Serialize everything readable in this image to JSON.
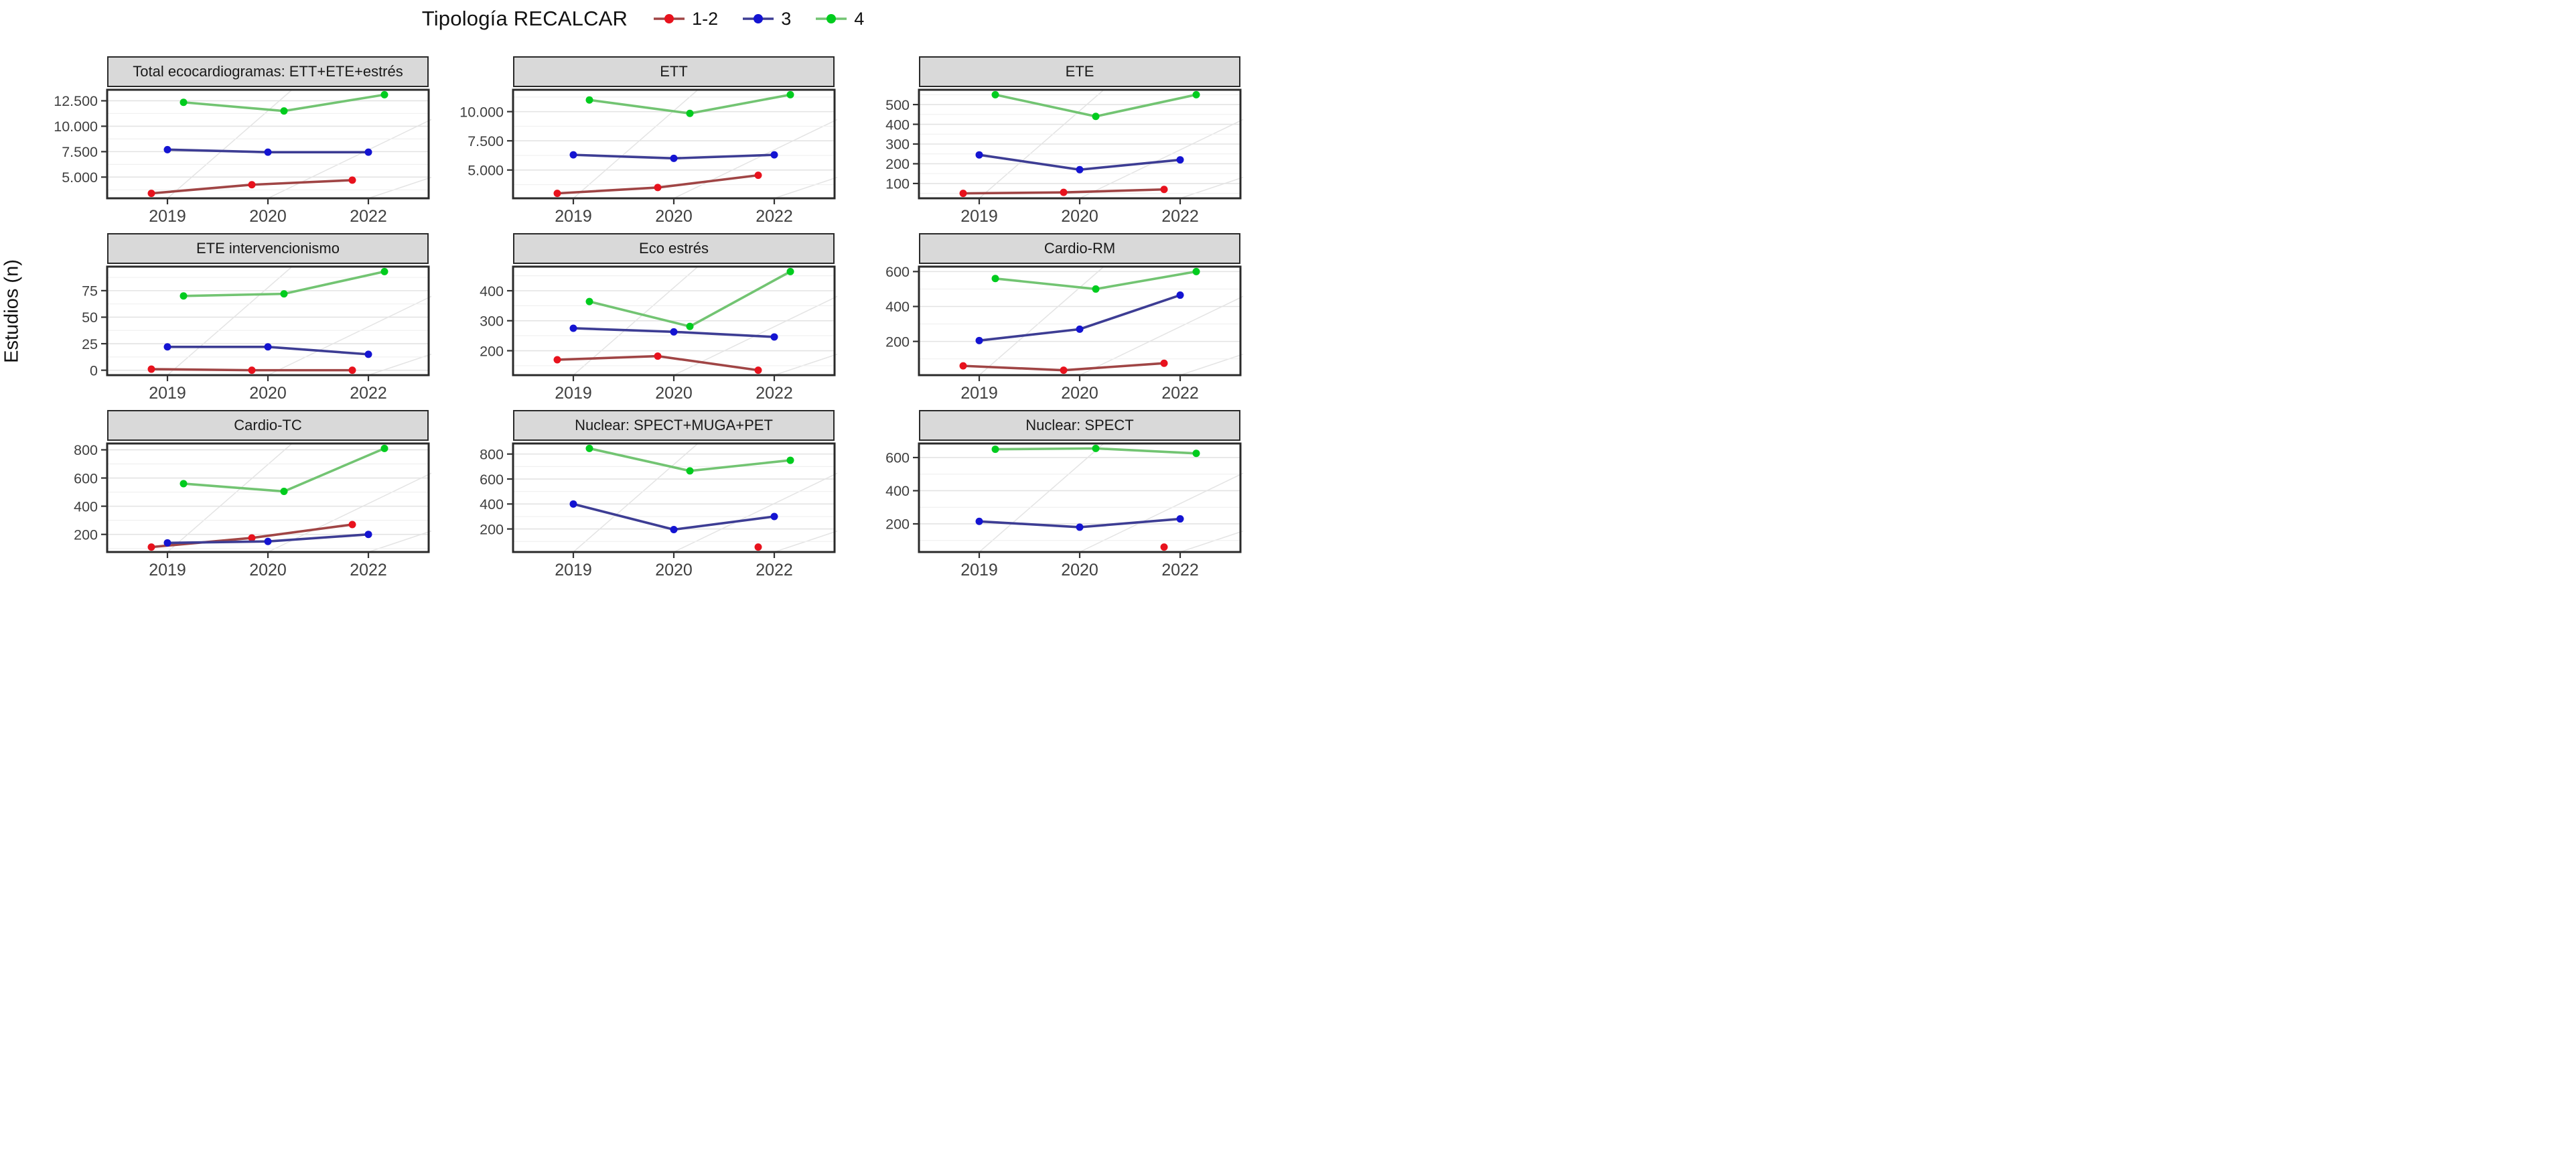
{
  "header": {
    "title": "Tipología RECALCAR",
    "legend": [
      {
        "label": "1-2",
        "point_color": "#e8121d",
        "line_color": "#a04545"
      },
      {
        "label": "3",
        "point_color": "#1414d2",
        "line_color": "#3d3d94"
      },
      {
        "label": "4",
        "point_color": "#00cc1e",
        "line_color": "#72c472"
      }
    ]
  },
  "y_axis_title": "Estudios (n)",
  "x_categories": [
    "2019",
    "2020",
    "2022"
  ],
  "chart_data": [
    {
      "type": "line",
      "title": "Total ecocardiogramas: ETT+ETE+estrés",
      "categories": [
        "2019",
        "2020",
        "2022"
      ],
      "yticks": [
        {
          "value": 5000,
          "label": "5.000"
        },
        {
          "value": 7500,
          "label": "7.500"
        },
        {
          "value": 10000,
          "label": "10.000"
        },
        {
          "value": 12500,
          "label": "12.500"
        }
      ],
      "series": [
        {
          "name": "1-2",
          "values": [
            3400,
            4250,
            4700
          ]
        },
        {
          "name": "3",
          "values": [
            7700,
            7450,
            7450
          ]
        },
        {
          "name": "4",
          "values": [
            12350,
            11500,
            13100
          ]
        }
      ]
    },
    {
      "type": "line",
      "title": "ETT",
      "categories": [
        "2019",
        "2020",
        "2022"
      ],
      "yticks": [
        {
          "value": 5000,
          "label": "5.000"
        },
        {
          "value": 7500,
          "label": "7.500"
        },
        {
          "value": 10000,
          "label": "10.000"
        }
      ],
      "series": [
        {
          "name": "1-2",
          "values": [
            3000,
            3500,
            4550
          ]
        },
        {
          "name": "3",
          "values": [
            6300,
            6000,
            6300
          ]
        },
        {
          "name": "4",
          "values": [
            11000,
            9850,
            11450
          ]
        }
      ]
    },
    {
      "type": "line",
      "title": "ETE",
      "categories": [
        "2019",
        "2020",
        "2022"
      ],
      "yticks": [
        {
          "value": 100,
          "label": "100"
        },
        {
          "value": 200,
          "label": "200"
        },
        {
          "value": 300,
          "label": "300"
        },
        {
          "value": 400,
          "label": "400"
        },
        {
          "value": 500,
          "label": "500"
        }
      ],
      "series": [
        {
          "name": "1-2",
          "values": [
            50,
            55,
            70
          ]
        },
        {
          "name": "3",
          "values": [
            245,
            170,
            220
          ]
        },
        {
          "name": "4",
          "values": [
            550,
            440,
            550
          ]
        }
      ]
    },
    {
      "type": "line",
      "title": "ETE intervencionismo",
      "categories": [
        "2019",
        "2020",
        "2022"
      ],
      "yticks": [
        {
          "value": 0,
          "label": "0"
        },
        {
          "value": 25,
          "label": "25"
        },
        {
          "value": 50,
          "label": "50"
        },
        {
          "value": 75,
          "label": "75"
        }
      ],
      "series": [
        {
          "name": "1-2",
          "values": [
            1,
            0,
            0
          ]
        },
        {
          "name": "3",
          "values": [
            22,
            22,
            15
          ]
        },
        {
          "name": "4",
          "values": [
            70,
            72,
            93
          ]
        }
      ]
    },
    {
      "type": "line",
      "title": "Eco estrés",
      "categories": [
        "2019",
        "2020",
        "2022"
      ],
      "yticks": [
        {
          "value": 200,
          "label": "200"
        },
        {
          "value": 300,
          "label": "300"
        },
        {
          "value": 400,
          "label": "400"
        }
      ],
      "series": [
        {
          "name": "1-2",
          "values": [
            170,
            182,
            135
          ]
        },
        {
          "name": "3",
          "values": [
            275,
            263,
            246
          ]
        },
        {
          "name": "4",
          "values": [
            364,
            281,
            464
          ]
        }
      ]
    },
    {
      "type": "line",
      "title": "Cardio-RM",
      "categories": [
        "2019",
        "2020",
        "2022"
      ],
      "yticks": [
        {
          "value": 200,
          "label": "200"
        },
        {
          "value": 400,
          "label": "400"
        },
        {
          "value": 600,
          "label": "600"
        }
      ],
      "series": [
        {
          "name": "1-2",
          "values": [
            60,
            35,
            75
          ]
        },
        {
          "name": "3",
          "values": [
            205,
            270,
            465
          ]
        },
        {
          "name": "4",
          "values": [
            560,
            500,
            600
          ]
        }
      ]
    },
    {
      "type": "line",
      "title": "Cardio-TC",
      "categories": [
        "2019",
        "2020",
        "2022"
      ],
      "yticks": [
        {
          "value": 200,
          "label": "200"
        },
        {
          "value": 400,
          "label": "400"
        },
        {
          "value": 600,
          "label": "600"
        },
        {
          "value": 800,
          "label": "800"
        }
      ],
      "series": [
        {
          "name": "1-2",
          "values": [
            110,
            175,
            270
          ]
        },
        {
          "name": "3",
          "values": [
            140,
            150,
            200
          ]
        },
        {
          "name": "4",
          "values": [
            560,
            505,
            810
          ]
        }
      ]
    },
    {
      "type": "line",
      "title": "Nuclear: SPECT+MUGA+PET",
      "categories": [
        "2019",
        "2020",
        "2022"
      ],
      "yticks": [
        {
          "value": 200,
          "label": "200"
        },
        {
          "value": 400,
          "label": "400"
        },
        {
          "value": 600,
          "label": "600"
        },
        {
          "value": 800,
          "label": "800"
        }
      ],
      "series": [
        {
          "name": "1-2",
          "values": [
            null,
            null,
            55
          ]
        },
        {
          "name": "3",
          "values": [
            400,
            195,
            300
          ]
        },
        {
          "name": "4",
          "values": [
            845,
            665,
            750
          ]
        }
      ]
    },
    {
      "type": "line",
      "title": "Nuclear: SPECT",
      "categories": [
        "2019",
        "2020",
        "2022"
      ],
      "yticks": [
        {
          "value": 200,
          "label": "200"
        },
        {
          "value": 400,
          "label": "400"
        },
        {
          "value": 600,
          "label": "600"
        }
      ],
      "series": [
        {
          "name": "1-2",
          "values": [
            null,
            null,
            60
          ]
        },
        {
          "name": "3",
          "values": [
            215,
            180,
            230
          ]
        },
        {
          "name": "4",
          "values": [
            650,
            655,
            625
          ]
        }
      ]
    }
  ]
}
